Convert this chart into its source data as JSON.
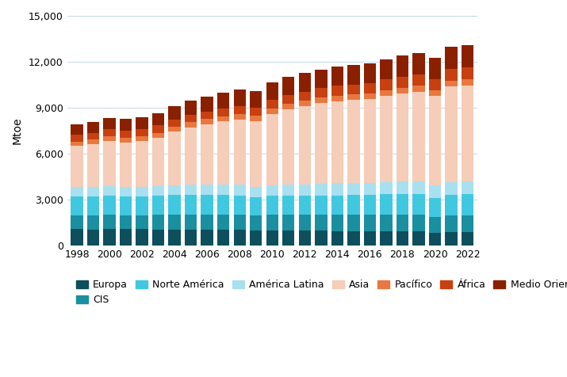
{
  "years": [
    1998,
    1999,
    2000,
    2001,
    2002,
    2003,
    2004,
    2005,
    2006,
    2007,
    2008,
    2009,
    2010,
    2011,
    2012,
    2013,
    2014,
    2015,
    2016,
    2017,
    2018,
    2019,
    2020,
    2021,
    2022
  ],
  "series": {
    "Europa": [
      1050,
      1040,
      1060,
      1050,
      1050,
      1040,
      1040,
      1040,
      1020,
      1010,
      1000,
      960,
      980,
      970,
      950,
      950,
      940,
      930,
      920,
      910,
      900,
      900,
      800,
      860,
      850
    ],
    "CIS": [
      900,
      910,
      930,
      920,
      920,
      940,
      960,
      980,
      1000,
      1010,
      1010,
      970,
      1010,
      1040,
      1040,
      1050,
      1060,
      1070,
      1080,
      1090,
      1110,
      1120,
      1070,
      1110,
      1110
    ],
    "Norte América": [
      1250,
      1260,
      1270,
      1250,
      1250,
      1250,
      1280,
      1290,
      1280,
      1280,
      1260,
      1210,
      1240,
      1240,
      1240,
      1260,
      1270,
      1290,
      1310,
      1330,
      1360,
      1350,
      1240,
      1330,
      1370
    ],
    "América Latina": [
      600,
      610,
      630,
      620,
      610,
      620,
      640,
      660,
      670,
      690,
      700,
      690,
      710,
      730,
      750,
      770,
      790,
      800,
      790,
      800,
      810,
      820,
      790,
      820,
      830
    ],
    "Asia": [
      2700,
      2800,
      2950,
      2900,
      3000,
      3200,
      3500,
      3750,
      3950,
      4100,
      4250,
      4300,
      4650,
      4900,
      5100,
      5250,
      5350,
      5400,
      5450,
      5650,
      5750,
      5850,
      5850,
      6250,
      6300
    ],
    "Pacífico": [
      290,
      300,
      310,
      300,
      300,
      310,
      320,
      330,
      330,
      340,
      340,
      330,
      350,
      360,
      360,
      370,
      370,
      370,
      360,
      370,
      380,
      380,
      370,
      390,
      390
    ],
    "África": [
      420,
      430,
      440,
      450,
      460,
      470,
      490,
      500,
      510,
      530,
      540,
      550,
      570,
      590,
      610,
      620,
      640,
      660,
      680,
      700,
      720,
      740,
      740,
      780,
      800
    ],
    "Medio Oriente": [
      700,
      720,
      740,
      760,
      780,
      820,
      870,
      930,
      980,
      1020,
      1070,
      1080,
      1120,
      1170,
      1200,
      1230,
      1260,
      1280,
      1280,
      1320,
      1380,
      1390,
      1380,
      1430,
      1430
    ]
  },
  "colors": {
    "Europa": "#0d4f5c",
    "CIS": "#1a8fa0",
    "Norte América": "#40c8e0",
    "América Latina": "#a8e0f0",
    "Asia": "#f5cdb8",
    "Pacífico": "#e87840",
    "África": "#c84010",
    "Medio Oriente": "#8b2000"
  },
  "ylabel": "Mtoe",
  "ylim": [
    0,
    15000
  ],
  "yticks": [
    0,
    3000,
    6000,
    9000,
    12000,
    15000
  ],
  "background_color": "#ffffff",
  "grid_color": "#c8dde8",
  "bar_width": 0.75,
  "legend_order": [
    "Europa",
    "CIS",
    "Norte América",
    "América Latina",
    "Asia",
    "Pacífico",
    "África",
    "Medio Oriente"
  ]
}
